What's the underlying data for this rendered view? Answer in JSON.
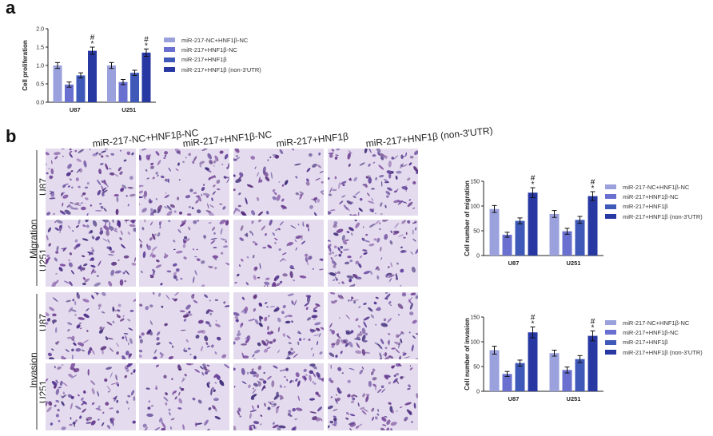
{
  "panels": {
    "a": "a",
    "b": "b"
  },
  "colors": {
    "g1": "#9aa1dc",
    "g2": "#6a70cf",
    "g3": "#3f59b8",
    "g4": "#2738a3"
  },
  "legend_items": [
    "miR-217-NC+HNF1β-NC",
    "miR-217+HNF1β-NC",
    "miR-217+HNF1β",
    "miR-217+HNF1β (non-3'UTR)"
  ],
  "microscopy": {
    "column_headers": [
      "miR-217-NC+HNF1β-NC",
      "miR-217+HNF1β-NC",
      "miR-217+HNF1β",
      "miR-217+HNF1β (non-3'UTR)"
    ],
    "groups": [
      {
        "label": "Migration",
        "rows": [
          "U87",
          "U251"
        ]
      },
      {
        "label": "Invasion",
        "rows": [
          "U87",
          "U251"
        ]
      }
    ]
  },
  "chart_data": [
    {
      "type": "bar",
      "ylabel": "Cell proliferation",
      "categories": [
        "U87",
        "U251"
      ],
      "ylim": [
        0,
        2.0
      ],
      "yticks": [
        "0.0",
        "0.5",
        "1.0",
        "1.5",
        "2.0"
      ],
      "series": [
        {
          "name": "miR-217-NC+HNF1β-NC",
          "values": [
            1.0,
            1.0
          ],
          "errors": [
            0.08,
            0.08
          ]
        },
        {
          "name": "miR-217+HNF1β-NC",
          "values": [
            0.48,
            0.55
          ],
          "errors": [
            0.07,
            0.07
          ]
        },
        {
          "name": "miR-217+HNF1β",
          "values": [
            0.73,
            0.8
          ],
          "errors": [
            0.07,
            0.07
          ]
        },
        {
          "name": "miR-217+HNF1β (non-3'UTR)",
          "values": [
            1.4,
            1.35
          ],
          "errors": [
            0.1,
            0.1
          ]
        }
      ],
      "annotations": [
        "*",
        "#"
      ]
    },
    {
      "type": "bar",
      "ylabel": "Cell number of migration",
      "categories": [
        "U87",
        "U251"
      ],
      "ylim": [
        0,
        150
      ],
      "yticks": [
        "0",
        "50",
        "100",
        "150"
      ],
      "series": [
        {
          "name": "miR-217-NC+HNF1β-NC",
          "values": [
            94,
            84
          ],
          "errors": [
            7,
            7
          ]
        },
        {
          "name": "miR-217+HNF1β-NC",
          "values": [
            42,
            49
          ],
          "errors": [
            5,
            6
          ]
        },
        {
          "name": "miR-217+HNF1β",
          "values": [
            70,
            72
          ],
          "errors": [
            6,
            7
          ]
        },
        {
          "name": "miR-217+HNF1β (non-3'UTR)",
          "values": [
            127,
            120
          ],
          "errors": [
            10,
            9
          ]
        }
      ],
      "annotations": [
        "*",
        "#"
      ]
    },
    {
      "type": "bar",
      "ylabel": "Cell number of invasion",
      "categories": [
        "U87",
        "U251"
      ],
      "ylim": [
        0,
        150
      ],
      "yticks": [
        "0",
        "50",
        "100",
        "150"
      ],
      "series": [
        {
          "name": "miR-217-NC+HNF1β-NC",
          "values": [
            83,
            77
          ],
          "errors": [
            8,
            6
          ]
        },
        {
          "name": "miR-217+HNF1β-NC",
          "values": [
            35,
            43
          ],
          "errors": [
            5,
            6
          ]
        },
        {
          "name": "miR-217+HNF1β",
          "values": [
            57,
            65
          ],
          "errors": [
            6,
            7
          ]
        },
        {
          "name": "miR-217+HNF1β (non-3'UTR)",
          "values": [
            119,
            112
          ],
          "errors": [
            11,
            10
          ]
        }
      ],
      "annotations": [
        "*",
        "#"
      ]
    }
  ]
}
